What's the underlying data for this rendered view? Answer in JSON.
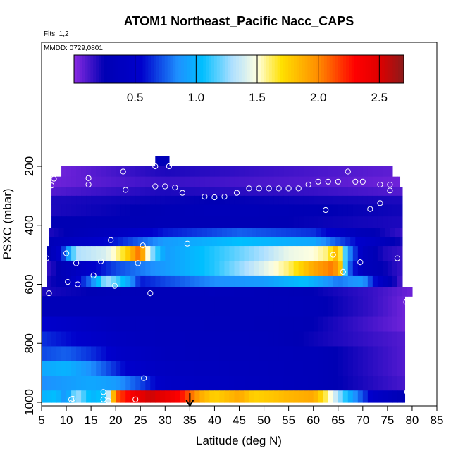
{
  "chart_data": {
    "type": "heatmap",
    "title": "ATOM1 Northeast_Pacific Nacc_CAPS",
    "subtitle_flights": "Flts: 1,2",
    "subtitle_dates": "MMDD: 0729,0801",
    "xlabel": "Latitude (deg N)",
    "ylabel": "PSXC (mbar)",
    "xlim": [
      5,
      85
    ],
    "ylim": [
      1000,
      60
    ],
    "x_ticks": [
      5,
      10,
      15,
      20,
      25,
      30,
      35,
      40,
      45,
      50,
      55,
      60,
      65,
      70,
      75,
      80,
      85
    ],
    "y_ticks": [
      200,
      400,
      600,
      800,
      1000
    ],
    "y_reversed": true,
    "colorbar": {
      "range": [
        0,
        2.7
      ],
      "ticks": [
        0.5,
        1.0,
        1.5,
        2.0,
        2.5
      ],
      "tick_labels": [
        "0.5",
        "1.0",
        "1.5",
        "2.0",
        "2.5"
      ],
      "stops": [
        {
          "v": 0.0,
          "c": "#8a2be2"
        },
        {
          "v": 0.25,
          "c": "#0000b4"
        },
        {
          "v": 0.55,
          "c": "#0000cc"
        },
        {
          "v": 0.85,
          "c": "#1e90ff"
        },
        {
          "v": 1.05,
          "c": "#00bfff"
        },
        {
          "v": 1.3,
          "c": "#b0e0ff"
        },
        {
          "v": 1.5,
          "c": "#ffffe0"
        },
        {
          "v": 1.7,
          "c": "#ffe000"
        },
        {
          "v": 2.0,
          "c": "#ff8c00"
        },
        {
          "v": 2.3,
          "c": "#ff0000"
        },
        {
          "v": 2.5,
          "c": "#e00000"
        },
        {
          "v": 2.7,
          "c": "#8b1a1a"
        }
      ]
    },
    "marker_arrow_x": 35,
    "layers": [
      {
        "p0": 165,
        "p1": 200,
        "xmin": 28,
        "xmax": 30.8,
        "a": [
          [
            28,
            0.3
          ]
        ]
      },
      {
        "p0": 200,
        "p1": 235,
        "xmin": 9,
        "xmax": 76,
        "a": [
          [
            9,
            0.05
          ],
          [
            30,
            0.2
          ],
          [
            60,
            0.12
          ],
          [
            76,
            0.08
          ]
        ]
      },
      {
        "p0": 235,
        "p1": 270,
        "xmin": 7,
        "xmax": 77.5,
        "a": [
          [
            7,
            0.05
          ],
          [
            30,
            0.15
          ],
          [
            60,
            0.1
          ],
          [
            77.5,
            0.05
          ]
        ]
      },
      {
        "p0": 270,
        "p1": 300,
        "xmin": 7,
        "xmax": 78,
        "a": [
          [
            7,
            0.1
          ],
          [
            30,
            0.2
          ],
          [
            60,
            0.15
          ],
          [
            78,
            0.1
          ]
        ]
      },
      {
        "p0": 300,
        "p1": 330,
        "xmin": 7,
        "xmax": 78,
        "a": [
          [
            7,
            0.2
          ],
          [
            40,
            0.25
          ],
          [
            78,
            0.2
          ]
        ]
      },
      {
        "p0": 330,
        "p1": 370,
        "xmin": 7,
        "xmax": 78,
        "a": [
          [
            7,
            0.2
          ],
          [
            40,
            0.3
          ],
          [
            78,
            0.22
          ]
        ]
      },
      {
        "p0": 370,
        "p1": 410,
        "xmin": 7,
        "xmax": 78,
        "a": [
          [
            7,
            0.25
          ],
          [
            40,
            0.28
          ],
          [
            78,
            0.2
          ]
        ]
      },
      {
        "p0": 410,
        "p1": 440,
        "xmin": 6.5,
        "xmax": 78,
        "a": [
          [
            6.5,
            0.2
          ],
          [
            20,
            0.4
          ],
          [
            30,
            0.6
          ],
          [
            45,
            0.75
          ],
          [
            60,
            0.65
          ],
          [
            70,
            0.3
          ],
          [
            78,
            0.15
          ]
        ]
      },
      {
        "p0": 440,
        "p1": 470,
        "xmin": 6.5,
        "xmax": 78,
        "a": [
          [
            6.5,
            0.3
          ],
          [
            20,
            0.6
          ],
          [
            30,
            0.9
          ],
          [
            45,
            1.05
          ],
          [
            60,
            0.95
          ],
          [
            70,
            0.5
          ],
          [
            78,
            0.2
          ]
        ]
      },
      {
        "p0": 470,
        "p1": 520,
        "xmin": 6,
        "xmax": 78,
        "a": [
          [
            6,
            0.2
          ],
          [
            9,
            0.55
          ],
          [
            12,
            1.3
          ],
          [
            18,
            1.4
          ],
          [
            22,
            1.7
          ],
          [
            25,
            2.1
          ],
          [
            27,
            1.3
          ],
          [
            30,
            0.9
          ],
          [
            40,
            1.1
          ],
          [
            50,
            1.3
          ],
          [
            55,
            1.45
          ],
          [
            60,
            1.5
          ],
          [
            63,
            1.6
          ],
          [
            65,
            1.9
          ],
          [
            67,
            0.9
          ],
          [
            70,
            0.4
          ],
          [
            74,
            0.2
          ],
          [
            78,
            0.15
          ]
        ]
      },
      {
        "p0": 520,
        "p1": 570,
        "xmin": 6,
        "xmax": 78,
        "a": [
          [
            6,
            0.15
          ],
          [
            12,
            0.4
          ],
          [
            20,
            0.7
          ],
          [
            30,
            0.9
          ],
          [
            40,
            1.1
          ],
          [
            48,
            1.35
          ],
          [
            55,
            1.6
          ],
          [
            60,
            1.9
          ],
          [
            64,
            2.05
          ],
          [
            65.5,
            1.8
          ],
          [
            67,
            0.8
          ],
          [
            70,
            0.35
          ],
          [
            78,
            0.15
          ]
        ]
      },
      {
        "p0": 570,
        "p1": 610,
        "xmin": 6,
        "xmax": 78,
        "a": [
          [
            6,
            0.2
          ],
          [
            10,
            0.3
          ],
          [
            15,
            0.8
          ],
          [
            18,
            1.3
          ],
          [
            21,
            1.1
          ],
          [
            23,
            0.9
          ],
          [
            25,
            0.6
          ],
          [
            30,
            0.7
          ],
          [
            40,
            0.85
          ],
          [
            50,
            0.9
          ],
          [
            58,
            1.05
          ],
          [
            65,
            0.8
          ],
          [
            70,
            0.9
          ],
          [
            73,
            0.5
          ],
          [
            78,
            0.1
          ]
        ]
      },
      {
        "p0": 610,
        "p1": 640,
        "xmin": 5,
        "xmax": 80,
        "a": [
          [
            5,
            0.2
          ],
          [
            20,
            0.28
          ],
          [
            40,
            0.32
          ],
          [
            60,
            0.25
          ],
          [
            72,
            0.15
          ],
          [
            80,
            0.05
          ]
        ]
      },
      {
        "p0": 640,
        "p1": 710,
        "xmin": 5,
        "xmax": 78.5,
        "a": [
          [
            5,
            0.3
          ],
          [
            15,
            0.3
          ],
          [
            30,
            0.3
          ],
          [
            60,
            0.28
          ],
          [
            72,
            0.15
          ],
          [
            78.5,
            0.05
          ]
        ]
      },
      {
        "p0": 710,
        "p1": 760,
        "xmin": 5,
        "xmax": 78.5,
        "a": [
          [
            5,
            0.55
          ],
          [
            12,
            0.45
          ],
          [
            20,
            0.35
          ],
          [
            40,
            0.3
          ],
          [
            60,
            0.25
          ],
          [
            78.5,
            0.05
          ]
        ]
      },
      {
        "p0": 760,
        "p1": 810,
        "xmin": 5,
        "xmax": 78.5,
        "a": [
          [
            5,
            0.65
          ],
          [
            12,
            0.55
          ],
          [
            18,
            0.45
          ],
          [
            25,
            0.35
          ],
          [
            50,
            0.3
          ],
          [
            78.5,
            0.1
          ]
        ]
      },
      {
        "p0": 810,
        "p1": 860,
        "xmin": 5,
        "xmax": 78.5,
        "a": [
          [
            5,
            0.7
          ],
          [
            10,
            0.75
          ],
          [
            15,
            0.65
          ],
          [
            22,
            0.45
          ],
          [
            30,
            0.35
          ],
          [
            60,
            0.3
          ],
          [
            78.5,
            0.1
          ]
        ]
      },
      {
        "p0": 860,
        "p1": 910,
        "xmin": 5,
        "xmax": 78.5,
        "a": [
          [
            5,
            0.95
          ],
          [
            10,
            1.0
          ],
          [
            15,
            0.85
          ],
          [
            22,
            0.55
          ],
          [
            30,
            0.4
          ],
          [
            60,
            0.3
          ],
          [
            78.5,
            0.1
          ]
        ]
      },
      {
        "p0": 910,
        "p1": 960,
        "xmin": 5,
        "xmax": 78.5,
        "a": [
          [
            5,
            0.85
          ],
          [
            15,
            0.95
          ],
          [
            20,
            0.9
          ],
          [
            25,
            0.7
          ],
          [
            30,
            0.45
          ],
          [
            60,
            0.3
          ],
          [
            78.5,
            0.12
          ]
        ]
      },
      {
        "p0": 960,
        "p1": 1000,
        "xmin": 5,
        "xmax": 78.5,
        "a": [
          [
            5,
            1.0
          ],
          [
            8,
            1.05
          ],
          [
            10,
            0.85
          ],
          [
            12,
            1.3
          ],
          [
            15,
            1.0
          ],
          [
            18,
            1.1
          ],
          [
            20,
            2.1
          ],
          [
            24,
            2.4
          ],
          [
            27,
            2.55
          ],
          [
            30,
            2.45
          ],
          [
            33,
            2.3
          ],
          [
            35,
            2.1
          ],
          [
            37,
            1.9
          ],
          [
            40,
            1.75
          ],
          [
            45,
            1.9
          ],
          [
            48,
            1.75
          ],
          [
            52,
            1.8
          ],
          [
            55,
            1.85
          ],
          [
            60,
            1.9
          ],
          [
            62,
            1.7
          ],
          [
            65,
            1.3
          ],
          [
            68,
            0.9
          ],
          [
            72,
            0.5
          ],
          [
            78.5,
            0.25
          ]
        ]
      }
    ],
    "obs_points": [
      [
        28,
        200
      ],
      [
        30.8,
        200
      ],
      [
        7.5,
        242
      ],
      [
        7,
        265
      ],
      [
        14.5,
        240
      ],
      [
        14.5,
        262
      ],
      [
        21.5,
        218
      ],
      [
        22,
        280
      ],
      [
        28,
        268
      ],
      [
        30,
        268
      ],
      [
        32,
        272
      ],
      [
        33.5,
        290
      ],
      [
        38,
        303
      ],
      [
        40,
        305
      ],
      [
        42,
        303
      ],
      [
        44.5,
        290
      ],
      [
        47,
        275
      ],
      [
        49,
        275
      ],
      [
        51,
        275
      ],
      [
        53,
        275
      ],
      [
        55,
        275
      ],
      [
        57,
        275
      ],
      [
        59,
        262
      ],
      [
        61,
        252
      ],
      [
        63,
        252
      ],
      [
        65,
        252
      ],
      [
        67,
        218
      ],
      [
        68.5,
        252
      ],
      [
        70,
        252
      ],
      [
        71.5,
        345
      ],
      [
        73.5,
        262
      ],
      [
        73.5,
        325
      ],
      [
        75.5,
        262
      ],
      [
        75.5,
        282
      ],
      [
        62.5,
        348
      ],
      [
        19,
        450
      ],
      [
        25.5,
        468
      ],
      [
        34.5,
        462
      ],
      [
        10,
        495
      ],
      [
        17,
        522
      ],
      [
        12,
        528
      ],
      [
        6,
        512
      ],
      [
        24.5,
        528
      ],
      [
        64,
        500
      ],
      [
        66,
        558
      ],
      [
        69.5,
        525
      ],
      [
        77,
        512
      ],
      [
        15.5,
        570
      ],
      [
        10.3,
        592
      ],
      [
        12.3,
        600
      ],
      [
        19.8,
        605
      ],
      [
        6.5,
        630
      ],
      [
        27,
        630
      ],
      [
        78.8,
        660
      ],
      [
        25.7,
        918
      ],
      [
        11.3,
        988
      ],
      [
        11,
        990
      ],
      [
        17.5,
        965
      ],
      [
        17.5,
        990
      ],
      [
        18.5,
        995
      ],
      [
        24,
        990
      ],
      [
        79,
        965
      ]
    ]
  }
}
